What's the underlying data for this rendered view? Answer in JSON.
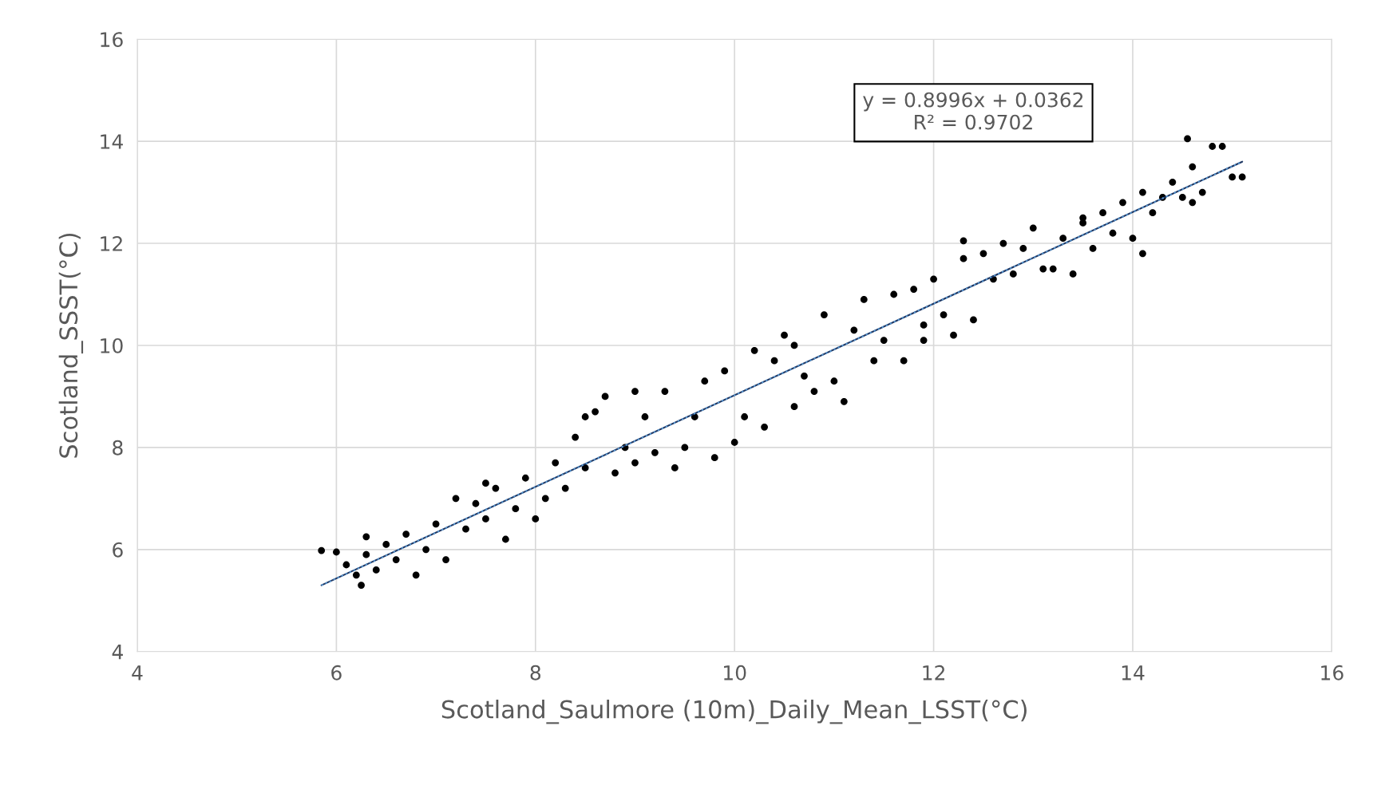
{
  "chart_data": {
    "type": "scatter",
    "xlabel": "Scotland_Saulmore (10m)_Daily_Mean_LSST(°C)",
    "ylabel": "Scotland_SSST(°C)",
    "xlim": [
      4,
      16
    ],
    "xticks": [
      4,
      6,
      8,
      10,
      12,
      14,
      16
    ],
    "ylim": [
      4,
      16
    ],
    "yticks": [
      4,
      6,
      8,
      10,
      12,
      14,
      16
    ],
    "grid": true,
    "annotations": [
      "y = 0.8996x + 0.0362\nR² = 0.9702"
    ],
    "series": [
      {
        "marker": "circle",
        "color": "#000000",
        "x": [
          5.85,
          6.0,
          6.1,
          6.2,
          6.25,
          6.3,
          6.4,
          6.5,
          6.6,
          6.7,
          6.8,
          6.9,
          7.0,
          7.1,
          7.2,
          7.3,
          7.4,
          7.5,
          7.6,
          7.7,
          7.8,
          7.9,
          8.0,
          8.1,
          8.2,
          8.3,
          8.4,
          8.5,
          8.6,
          8.7,
          8.8,
          8.9,
          9.0,
          9.1,
          9.2,
          9.3,
          9.4,
          9.5,
          9.6,
          9.7,
          9.8,
          9.9,
          10.0,
          10.1,
          10.2,
          10.3,
          10.4,
          10.5,
          10.6,
          10.7,
          10.8,
          10.9,
          11.0,
          11.1,
          11.2,
          11.3,
          11.4,
          11.5,
          11.6,
          11.7,
          11.8,
          11.9,
          12.0,
          12.1,
          12.2,
          12.3,
          12.4,
          12.5,
          12.6,
          12.7,
          12.8,
          12.9,
          13.0,
          13.1,
          13.2,
          13.3,
          13.4,
          13.5,
          13.6,
          13.7,
          13.8,
          13.9,
          14.0,
          14.1,
          14.1,
          14.2,
          14.3,
          14.4,
          14.5,
          14.55,
          14.6,
          14.7,
          14.8,
          14.9,
          15.0,
          15.1,
          6.3,
          7.5,
          8.5,
          9.0,
          10.6,
          11.9,
          12.3,
          13.5,
          14.6
        ],
        "values": [
          5.98,
          5.95,
          5.7,
          5.5,
          5.3,
          5.9,
          5.6,
          6.1,
          5.8,
          6.3,
          5.5,
          6.0,
          6.5,
          5.8,
          7.0,
          6.4,
          6.9,
          6.6,
          7.2,
          6.2,
          6.8,
          7.4,
          6.6,
          7.0,
          7.7,
          7.2,
          8.2,
          7.6,
          8.7,
          9.0,
          7.5,
          8.0,
          7.7,
          8.6,
          7.9,
          9.1,
          7.6,
          8.0,
          8.6,
          9.3,
          7.8,
          9.5,
          8.1,
          8.6,
          9.9,
          8.4,
          9.7,
          10.2,
          8.8,
          9.4,
          9.1,
          10.6,
          9.3,
          8.9,
          10.3,
          10.9,
          9.7,
          10.1,
          11.0,
          9.7,
          11.1,
          10.4,
          11.3,
          10.6,
          10.2,
          11.7,
          10.5,
          11.8,
          11.3,
          12.0,
          11.4,
          11.9,
          12.3,
          11.5,
          11.5,
          12.1,
          11.4,
          12.4,
          11.9,
          12.6,
          12.2,
          12.8,
          12.1,
          13.0,
          11.8,
          12.6,
          12.9,
          13.2,
          12.9,
          14.05,
          13.5,
          13.0,
          13.9,
          13.9,
          13.3,
          13.3,
          6.25,
          7.3,
          8.6,
          9.1,
          10.0,
          10.1,
          12.05,
          12.5,
          12.8
        ]
      },
      {
        "type": "line",
        "marker": "none",
        "color": "#5b9bd5",
        "line_style": "dotted",
        "x": [
          5.85,
          15.1
        ],
        "values": [
          5.3,
          13.6
        ]
      }
    ]
  }
}
